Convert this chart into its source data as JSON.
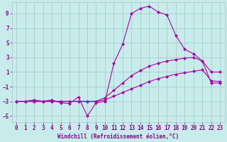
{
  "xlabel": "Windchill (Refroidissement éolien,°C)",
  "ylabel": "",
  "background_color": "#c8ecec",
  "grid_color": "#a0c8c8",
  "line_color": "#aa00aa",
  "xlim": [
    -0.5,
    23.5
  ],
  "ylim": [
    -5.8,
    10.5
  ],
  "xticks": [
    0,
    1,
    2,
    3,
    4,
    5,
    6,
    7,
    8,
    9,
    10,
    11,
    12,
    13,
    14,
    15,
    16,
    17,
    18,
    19,
    20,
    21,
    22,
    23
  ],
  "yticks": [
    -5,
    -3,
    -1,
    1,
    3,
    5,
    7,
    9
  ],
  "x_vals": [
    0,
    1,
    2,
    3,
    4,
    5,
    6,
    7,
    8,
    9,
    10,
    11,
    12,
    13,
    14,
    15,
    16,
    17,
    18,
    19,
    20,
    21,
    22,
    23
  ],
  "line1": [
    -3,
    -3,
    -2.8,
    -3,
    -2.8,
    -3.2,
    -3.3,
    -2.4,
    -5.0,
    -3.2,
    -3.0,
    2.2,
    4.8,
    9.0,
    9.7,
    10.0,
    9.2,
    8.8,
    6.0,
    4.1,
    3.5,
    2.5,
    1.0,
    1.0
  ],
  "line2": [
    -3,
    -3,
    -3,
    -3,
    -3,
    -3,
    -3,
    -3,
    -3,
    -3,
    -2.5,
    -1.5,
    -0.5,
    0.5,
    1.2,
    1.8,
    2.2,
    2.5,
    2.7,
    2.9,
    3.0,
    2.5,
    -0.5,
    -0.5
  ],
  "line3": [
    -3,
    -3,
    -3,
    -3,
    -3,
    -3,
    -3,
    -3,
    -3,
    -3,
    -2.8,
    -2.3,
    -1.8,
    -1.3,
    -0.8,
    -0.3,
    0.1,
    0.4,
    0.7,
    0.9,
    1.1,
    1.3,
    -0.2,
    -0.3
  ],
  "font_color": "#880088",
  "font_size": 5.5,
  "marker_size": 2.5,
  "line_width": 0.8
}
